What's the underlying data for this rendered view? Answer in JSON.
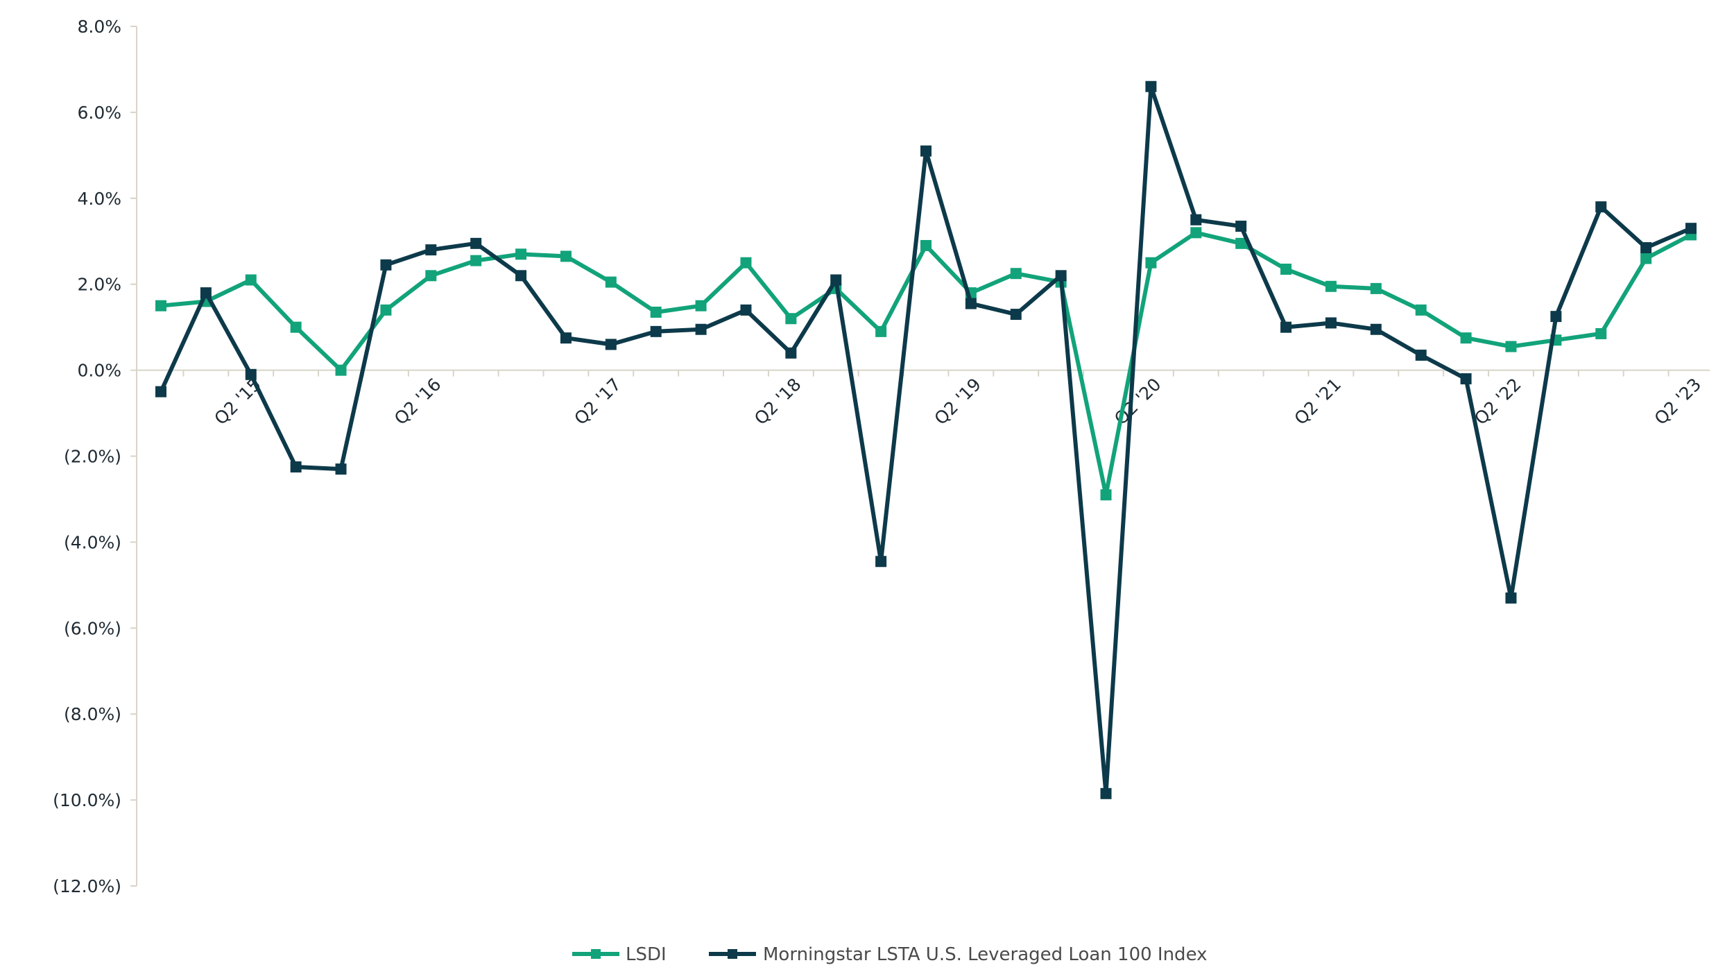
{
  "colors": {
    "lsdi": "#12a37a",
    "index": "#0d3a4a",
    "axis": "#d8d4c8"
  },
  "chart_data": {
    "type": "line",
    "title": "",
    "xlabel": "",
    "ylabel": "",
    "ylim": [
      -12,
      8
    ],
    "y_ticks": [
      8,
      6,
      4,
      2,
      0,
      -2,
      -4,
      -6,
      -8,
      -10,
      -12
    ],
    "y_tick_labels": [
      "8.0%",
      "6.0%",
      "4.0%",
      "2.0%",
      "0.0%",
      "(2.0%)",
      "(4.0%)",
      "(6.0%)",
      "(8.0%)",
      "(10.0%)",
      "(12.0%)"
    ],
    "grid": false,
    "legend_position": "bottom",
    "categories": [
      "Q4 '14",
      "Q1 '15",
      "Q2 '15",
      "Q3 '15",
      "Q4 '15",
      "Q1 '16",
      "Q2 '16",
      "Q3 '16",
      "Q4 '16",
      "Q1 '17",
      "Q2 '17",
      "Q3 '17",
      "Q4 '17",
      "Q1 '18",
      "Q2 '18",
      "Q3 '18",
      "Q4 '18",
      "Q1 '19",
      "Q2 '19",
      "Q3 '19",
      "Q4 '19",
      "Q1 '20",
      "Q2 '20",
      "Q3 '20",
      "Q4 '20",
      "Q1 '21",
      "Q2 '21",
      "Q3 '21",
      "Q4 '21",
      "Q1 '22",
      "Q2 '22",
      "Q3 '22",
      "Q4 '22",
      "Q1 '23",
      "Q2 '23"
    ],
    "x_tick_labels": [
      {
        "index": 2,
        "label": "Q2 '15"
      },
      {
        "index": 6,
        "label": "Q2 '16"
      },
      {
        "index": 10,
        "label": "Q2 '17"
      },
      {
        "index": 14,
        "label": "Q2 '18"
      },
      {
        "index": 18,
        "label": "Q2 '19"
      },
      {
        "index": 22,
        "label": "Q2 '20"
      },
      {
        "index": 26,
        "label": "Q2 '21"
      },
      {
        "index": 30,
        "label": "Q2 '22"
      },
      {
        "index": 34,
        "label": "Q2 '23"
      }
    ],
    "series": [
      {
        "name": "LSDI",
        "color_key": "lsdi",
        "values": [
          1.5,
          1.6,
          2.1,
          1.0,
          0.0,
          1.4,
          2.2,
          2.55,
          2.7,
          2.65,
          2.05,
          1.35,
          1.5,
          2.5,
          1.2,
          1.9,
          0.9,
          2.9,
          1.8,
          2.25,
          2.05,
          -2.9,
          2.5,
          3.2,
          2.95,
          2.35,
          1.95,
          1.9,
          1.4,
          0.75,
          0.55,
          0.7,
          0.85,
          2.6,
          3.15
        ]
      },
      {
        "name": "Morningstar LSTA U.S. Leveraged Loan 100 Index",
        "color_key": "index",
        "values": [
          -0.5,
          1.8,
          -0.1,
          -2.25,
          -2.3,
          2.45,
          2.8,
          2.95,
          2.2,
          0.75,
          0.6,
          0.9,
          0.95,
          1.4,
          0.4,
          2.1,
          -4.45,
          5.1,
          1.55,
          1.3,
          2.2,
          -9.85,
          6.6,
          3.5,
          3.35,
          1.0,
          1.1,
          0.95,
          0.35,
          -0.2,
          -5.3,
          1.25,
          3.8,
          2.85,
          3.3
        ]
      }
    ]
  }
}
